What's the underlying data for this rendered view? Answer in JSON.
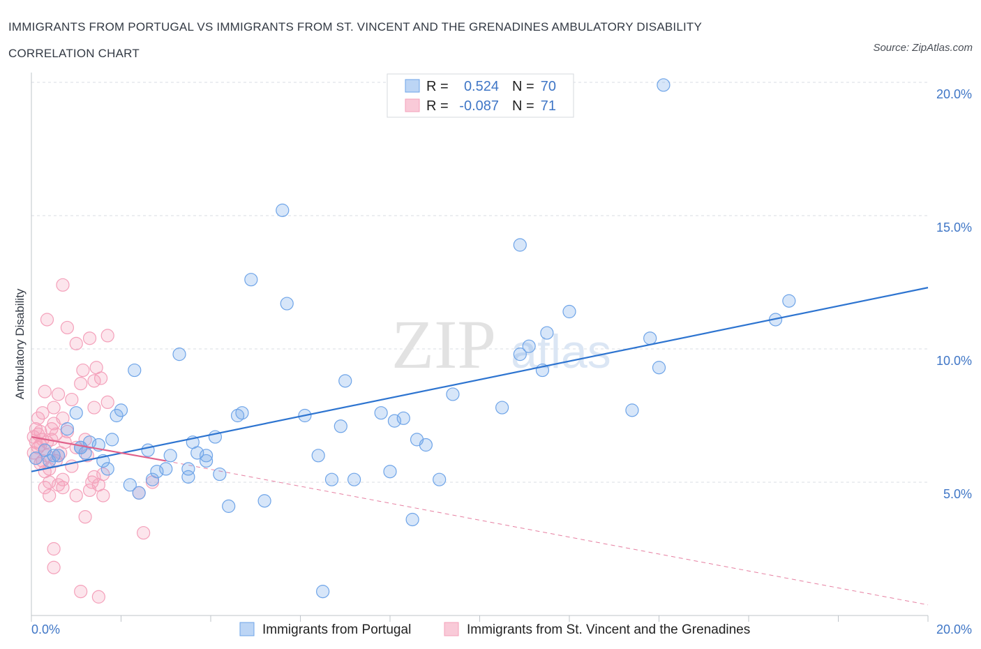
{
  "header": {
    "title": "IMMIGRANTS FROM PORTUGAL VS IMMIGRANTS FROM ST. VINCENT AND THE GRENADINES AMBULATORY DISABILITY CORRELATION CHART",
    "source": "Source: ZipAtlas.com"
  },
  "watermark": {
    "zip": "ZIP",
    "atlas": "atlas"
  },
  "colors": {
    "portugal": "#6ea4e8",
    "portugal_line": "#2d74d0",
    "stvincent": "#f4a0ba",
    "stvincent_line": "#e0608a",
    "tick": "#3f76c6",
    "grid": "#d9dde3"
  },
  "chart_data": {
    "type": "scatter",
    "title": "IMMIGRANTS FROM PORTUGAL VS IMMIGRANTS FROM ST. VINCENT AND THE GRENADINES AMBULATORY DISABILITY CORRELATION CHART",
    "ylabel": "Ambulatory Disability",
    "xlabel": "",
    "xlim": [
      0,
      20
    ],
    "ylim": [
      0,
      20
    ],
    "x_tick_labels": [
      "0.0%",
      "20.0%"
    ],
    "y_ticks": [
      5,
      10,
      15,
      20
    ],
    "y_tick_labels": [
      "5.0%",
      "10.0%",
      "15.0%",
      "20.0%"
    ],
    "grid": true,
    "legend_position": "top-center",
    "stats": [
      {
        "r_label": "R =",
        "r_value": "0.524",
        "n_label": "N =",
        "n_value": "70"
      },
      {
        "r_label": "R =",
        "r_value": "-0.087",
        "n_label": "N =",
        "n_value": "71"
      }
    ],
    "series": [
      {
        "name": "Immigrants from Portugal",
        "trend": {
          "x": [
            0.0,
            20.0
          ],
          "y": [
            5.4,
            12.3
          ]
        },
        "points": [
          [
            0.1,
            5.9
          ],
          [
            0.3,
            6.2
          ],
          [
            0.4,
            5.8
          ],
          [
            0.5,
            6.0
          ],
          [
            0.6,
            6.0
          ],
          [
            0.8,
            7.0
          ],
          [
            1.0,
            7.6
          ],
          [
            1.1,
            6.3
          ],
          [
            1.2,
            6.1
          ],
          [
            1.3,
            6.5
          ],
          [
            1.5,
            6.4
          ],
          [
            1.6,
            5.8
          ],
          [
            1.7,
            5.5
          ],
          [
            1.8,
            6.6
          ],
          [
            1.9,
            7.5
          ],
          [
            2.0,
            7.7
          ],
          [
            2.2,
            4.9
          ],
          [
            2.3,
            9.2
          ],
          [
            2.4,
            4.6
          ],
          [
            2.6,
            6.2
          ],
          [
            2.7,
            5.1
          ],
          [
            2.8,
            5.4
          ],
          [
            3.0,
            5.5
          ],
          [
            3.1,
            6.0
          ],
          [
            3.3,
            9.8
          ],
          [
            3.5,
            5.5
          ],
          [
            3.5,
            5.2
          ],
          [
            3.6,
            6.5
          ],
          [
            3.7,
            6.1
          ],
          [
            3.9,
            6.0
          ],
          [
            3.9,
            5.8
          ],
          [
            4.1,
            6.7
          ],
          [
            4.2,
            5.3
          ],
          [
            4.4,
            4.1
          ],
          [
            4.6,
            7.5
          ],
          [
            4.7,
            7.6
          ],
          [
            4.9,
            12.6
          ],
          [
            5.2,
            4.3
          ],
          [
            5.6,
            15.2
          ],
          [
            5.7,
            11.7
          ],
          [
            6.1,
            7.5
          ],
          [
            6.4,
            6.0
          ],
          [
            6.7,
            5.1
          ],
          [
            6.9,
            7.1
          ],
          [
            7.0,
            8.8
          ],
          [
            7.2,
            5.1
          ],
          [
            7.8,
            7.6
          ],
          [
            8.0,
            5.4
          ],
          [
            8.1,
            7.3
          ],
          [
            8.3,
            7.4
          ],
          [
            8.5,
            3.6
          ],
          [
            8.6,
            6.6
          ],
          [
            8.8,
            6.4
          ],
          [
            9.1,
            5.1
          ],
          [
            9.4,
            8.3
          ],
          [
            10.5,
            7.8
          ],
          [
            10.9,
            9.8
          ],
          [
            11.1,
            10.1
          ],
          [
            10.9,
            13.9
          ],
          [
            11.5,
            10.6
          ],
          [
            11.4,
            9.2
          ],
          [
            12.0,
            11.4
          ],
          [
            13.4,
            7.7
          ],
          [
            13.8,
            10.4
          ],
          [
            14.0,
            9.3
          ],
          [
            14.1,
            19.9
          ],
          [
            16.6,
            11.1
          ],
          [
            16.9,
            11.8
          ],
          [
            6.5,
            0.9
          ],
          [
            1.1,
            6.3
          ]
        ]
      },
      {
        "name": "Immigrants from St. Vincent and the Grenadines",
        "trend": {
          "x": [
            0.0,
            3.0
          ],
          "y": [
            6.7,
            5.8
          ]
        },
        "trend_extended": {
          "x": [
            0.0,
            20.0
          ],
          "y": [
            6.7,
            0.4
          ]
        },
        "points": [
          [
            0.05,
            6.7
          ],
          [
            0.05,
            6.1
          ],
          [
            0.1,
            7.0
          ],
          [
            0.1,
            6.5
          ],
          [
            0.1,
            5.9
          ],
          [
            0.15,
            6.8
          ],
          [
            0.15,
            7.4
          ],
          [
            0.2,
            6.4
          ],
          [
            0.2,
            6.9
          ],
          [
            0.2,
            5.7
          ],
          [
            0.25,
            7.6
          ],
          [
            0.25,
            6.6
          ],
          [
            0.3,
            6.2
          ],
          [
            0.3,
            8.4
          ],
          [
            0.3,
            4.8
          ],
          [
            0.35,
            11.1
          ],
          [
            0.35,
            6.0
          ],
          [
            0.4,
            5.5
          ],
          [
            0.4,
            4.5
          ],
          [
            0.4,
            5.0
          ],
          [
            0.45,
            6.6
          ],
          [
            0.5,
            7.2
          ],
          [
            0.5,
            7.8
          ],
          [
            0.5,
            2.5
          ],
          [
            0.5,
            1.8
          ],
          [
            0.55,
            6.8
          ],
          [
            0.55,
            5.8
          ],
          [
            0.6,
            8.3
          ],
          [
            0.6,
            4.9
          ],
          [
            0.65,
            6.1
          ],
          [
            0.7,
            7.4
          ],
          [
            0.7,
            4.8
          ],
          [
            0.7,
            5.1
          ],
          [
            0.75,
            6.5
          ],
          [
            0.7,
            12.4
          ],
          [
            0.8,
            6.9
          ],
          [
            0.8,
            10.8
          ],
          [
            0.9,
            8.1
          ],
          [
            0.9,
            5.6
          ],
          [
            1.0,
            10.2
          ],
          [
            1.0,
            4.5
          ],
          [
            1.0,
            6.3
          ],
          [
            1.1,
            8.7
          ],
          [
            1.1,
            0.9
          ],
          [
            1.15,
            9.2
          ],
          [
            1.2,
            6.6
          ],
          [
            1.2,
            3.7
          ],
          [
            1.25,
            6.0
          ],
          [
            1.3,
            4.7
          ],
          [
            1.3,
            10.4
          ],
          [
            1.35,
            5.0
          ],
          [
            1.4,
            7.8
          ],
          [
            1.4,
            8.8
          ],
          [
            1.4,
            5.2
          ],
          [
            1.45,
            9.3
          ],
          [
            1.5,
            4.9
          ],
          [
            1.5,
            0.7
          ],
          [
            1.55,
            8.9
          ],
          [
            1.6,
            5.3
          ],
          [
            1.6,
            4.5
          ],
          [
            1.7,
            10.5
          ],
          [
            1.7,
            8.0
          ],
          [
            2.4,
            4.6
          ],
          [
            2.5,
            3.1
          ],
          [
            2.7,
            5.0
          ],
          [
            0.25,
            5.8
          ],
          [
            0.35,
            6.5
          ],
          [
            0.15,
            6.3
          ],
          [
            0.45,
            7.0
          ],
          [
            0.6,
            6.0
          ],
          [
            0.3,
            5.4
          ]
        ]
      }
    ]
  }
}
